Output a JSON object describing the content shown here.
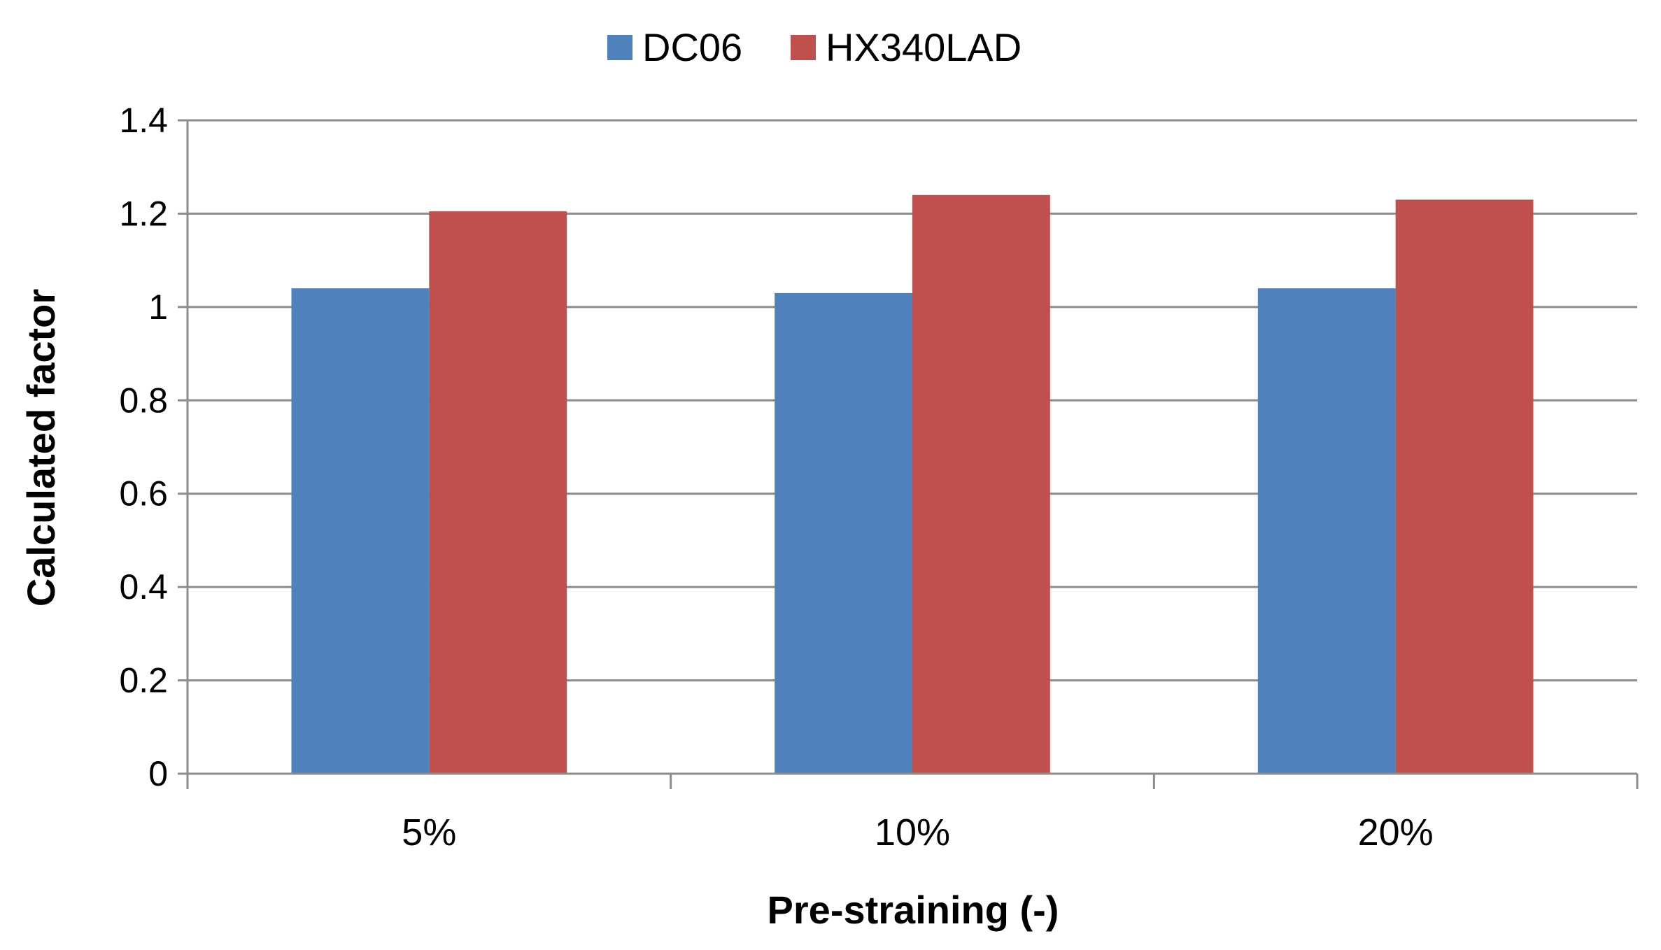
{
  "chart_data": {
    "type": "bar",
    "categories": [
      "5%",
      "10%",
      "20%"
    ],
    "series": [
      {
        "name": "DC06",
        "values": [
          1.04,
          1.03,
          1.04
        ],
        "color": "#4F81BD"
      },
      {
        "name": "HX340LAD",
        "values": [
          1.205,
          1.24,
          1.23
        ],
        "color": "#C0504D"
      }
    ],
    "title": "",
    "xlabel": "Pre-straining (-)",
    "ylabel": "Calculated factor",
    "ylim": [
      0,
      1.4
    ],
    "yticks": [
      "0",
      "0.2",
      "0.4",
      "0.6",
      "0.8",
      "1",
      "1.2",
      "1.4"
    ],
    "grid": true,
    "legend": "top-center"
  }
}
